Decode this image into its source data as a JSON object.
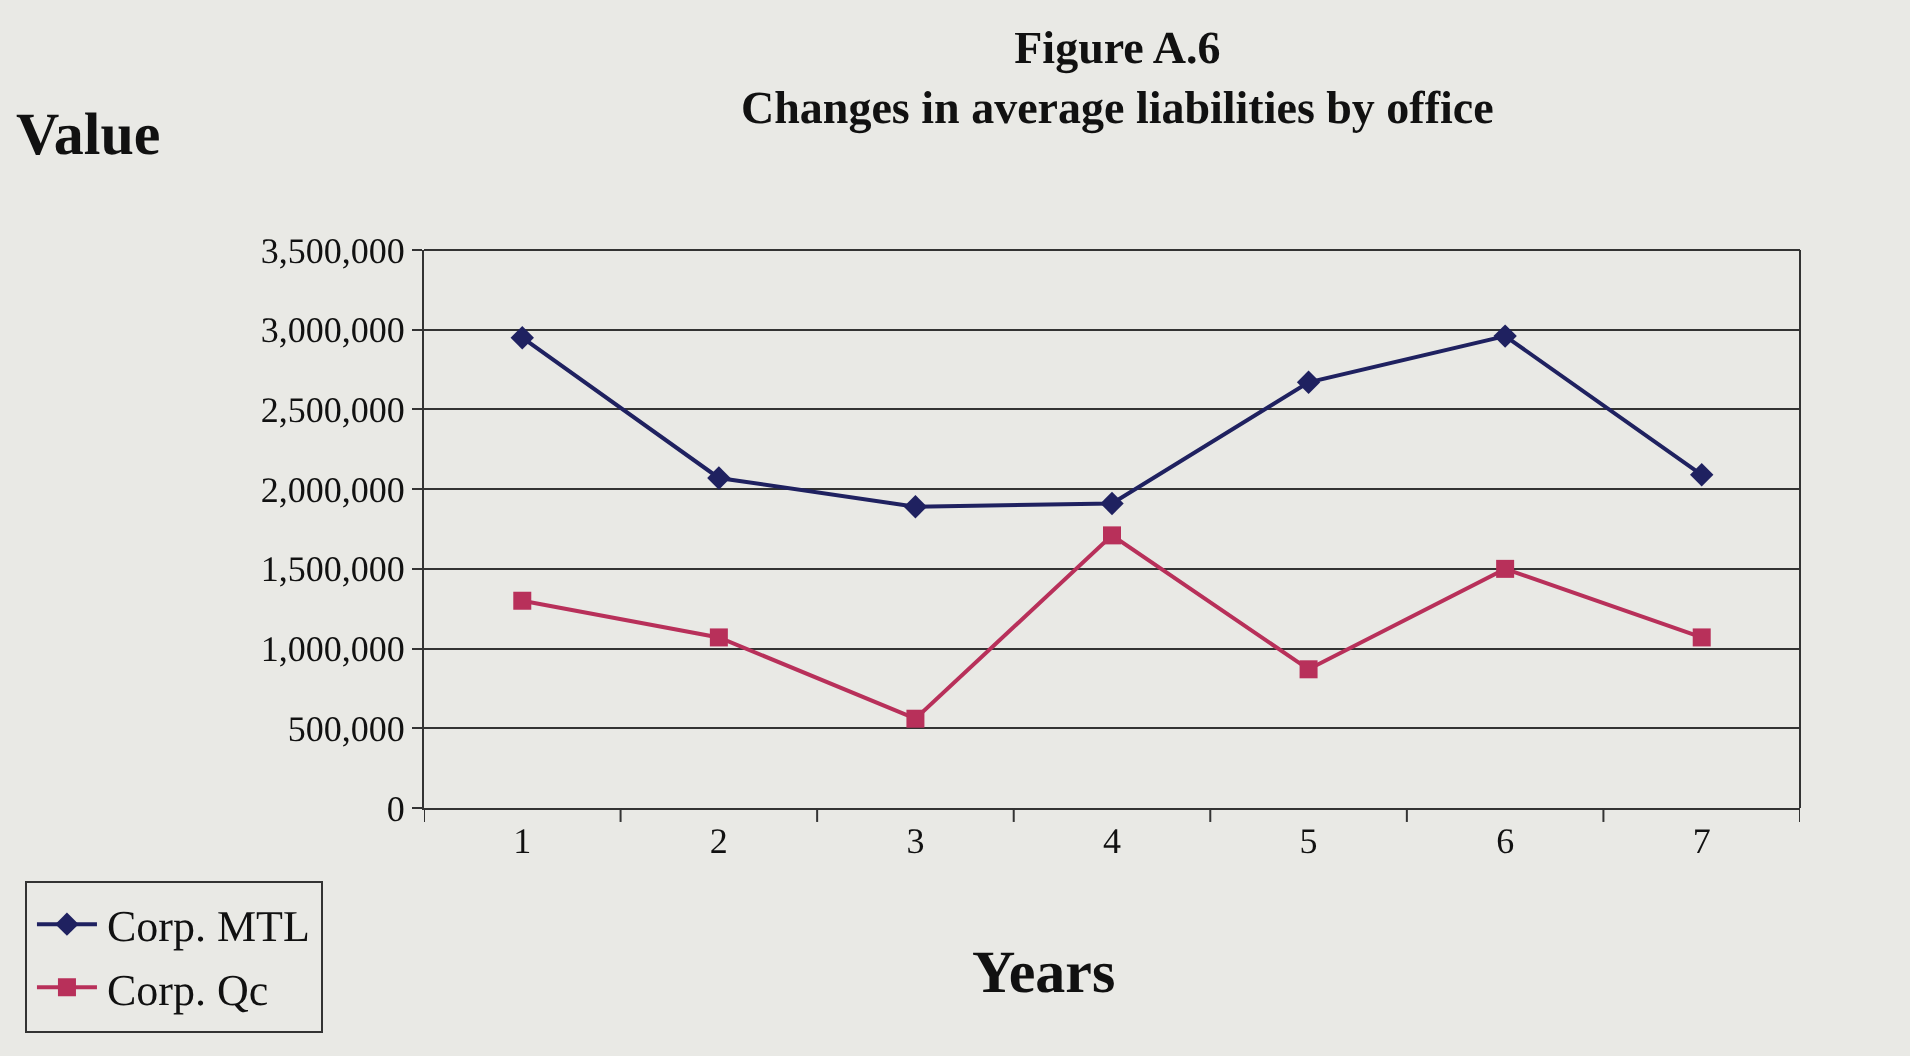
{
  "chart_data": {
    "type": "line",
    "title": "Figure A.6",
    "subtitle": "Changes in average liabilities by office",
    "xlabel": "Years",
    "ylabel": "Value",
    "categories": [
      "1",
      "2",
      "3",
      "4",
      "5",
      "6",
      "7"
    ],
    "series": [
      {
        "name": "Corp. MTL",
        "color": "#1f2160",
        "marker": "diamond",
        "values": [
          2950000,
          2070000,
          1890000,
          1910000,
          2670000,
          2960000,
          2090000
        ]
      },
      {
        "name": "Corp. Qc",
        "color": "#b8305a",
        "marker": "square",
        "values": [
          1300000,
          1070000,
          560000,
          1710000,
          870000,
          1500000,
          1070000
        ]
      }
    ],
    "ylim": [
      0,
      3500000
    ],
    "yticks": [
      {
        "value": 0,
        "label": "0"
      },
      {
        "value": 500000,
        "label": "500,000"
      },
      {
        "value": 1000000,
        "label": "1,000,000"
      },
      {
        "value": 1500000,
        "label": "1,500,000"
      },
      {
        "value": 2000000,
        "label": "2,000,000"
      },
      {
        "value": 2500000,
        "label": "2,500,000"
      },
      {
        "value": 3000000,
        "label": "3,000,000"
      },
      {
        "value": 3500000,
        "label": "3,500,000"
      }
    ],
    "grid": "y",
    "legend": "bottom left",
    "line_style": "solid"
  }
}
